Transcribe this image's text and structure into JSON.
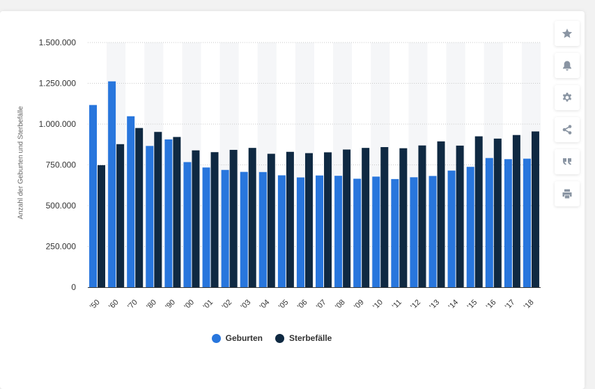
{
  "toolbar": {
    "icons": [
      "star-icon",
      "bell-icon",
      "gear-icon",
      "share-icon",
      "quote-icon",
      "print-icon"
    ]
  },
  "colors": {
    "births": "#2876dd",
    "deaths": "#0f2942",
    "band": "#f5f6f8",
    "grid": "#c9c9c9"
  },
  "chart_data": {
    "type": "bar",
    "title": "",
    "xlabel": "",
    "ylabel": "Anzahl der Geburten und Sterbefälle",
    "ylim": [
      0,
      1500000
    ],
    "yticks": [
      0,
      250000,
      500000,
      750000,
      1000000,
      1250000,
      1500000
    ],
    "ytick_labels": [
      "0",
      "250.000",
      "500.000",
      "750.000",
      "1.000.000",
      "1.250.000",
      "1.500.000"
    ],
    "grid": true,
    "legend_position": "bottom",
    "categories": [
      "'50",
      "'60",
      "'70",
      "'80",
      "'90",
      "'00",
      "'01",
      "'02",
      "'03",
      "'04",
      "'05",
      "'06",
      "'07",
      "'08",
      "'09",
      "'10",
      "'11",
      "'12",
      "'13",
      "'14",
      "'15",
      "'16",
      "'17",
      "'18"
    ],
    "series": [
      {
        "name": "Geburten",
        "values": [
          1117000,
          1262000,
          1048000,
          866000,
          906000,
          767000,
          734000,
          719000,
          707000,
          706000,
          686000,
          673000,
          685000,
          683000,
          665000,
          678000,
          663000,
          674000,
          682000,
          715000,
          738000,
          792000,
          785000,
          788000
        ]
      },
      {
        "name": "Sterbefälle",
        "values": [
          748000,
          877000,
          976000,
          952000,
          921000,
          839000,
          828000,
          842000,
          854000,
          818000,
          830000,
          822000,
          827000,
          844000,
          854000,
          859000,
          852000,
          869000,
          894000,
          868000,
          925000,
          911000,
          933000,
          955000
        ]
      }
    ]
  }
}
